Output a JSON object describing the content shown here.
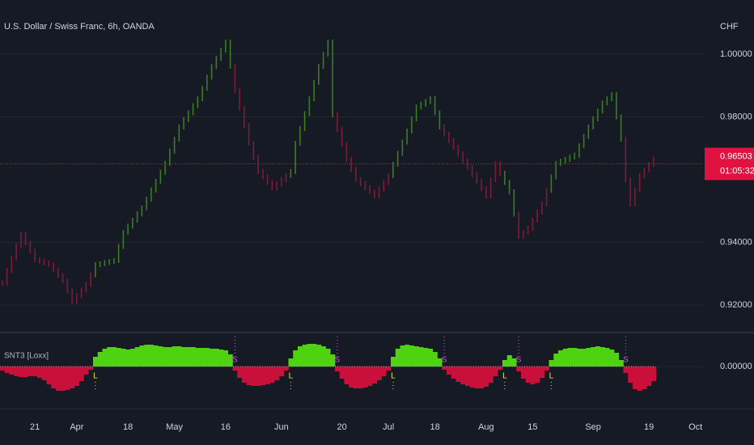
{
  "chart_data": [
    {
      "type": "bar",
      "title": "U.S. Dollar / Swiss Franc, 6h, OANDA",
      "currency": "CHF",
      "categories": [
        null,
        null,
        null,
        null,
        null,
        null,
        null,
        "21",
        null,
        null,
        null,
        null,
        null,
        null,
        null,
        null,
        "Apr",
        null,
        null,
        null,
        null,
        null,
        null,
        null,
        null,
        null,
        null,
        "18",
        null,
        null,
        null,
        null,
        null,
        null,
        null,
        null,
        null,
        "May",
        null,
        null,
        null,
        null,
        null,
        null,
        null,
        null,
        null,
        null,
        "16",
        null,
        null,
        null,
        null,
        null,
        null,
        null,
        null,
        null,
        null,
        null,
        "Jun",
        null,
        null,
        null,
        null,
        null,
        null,
        null,
        null,
        null,
        null,
        null,
        null,
        "20",
        null,
        null,
        null,
        null,
        null,
        null,
        null,
        null,
        null,
        "Jul",
        null,
        null,
        null,
        null,
        null,
        null,
        null,
        null,
        null,
        "18",
        null,
        null,
        null,
        null,
        null,
        null,
        null,
        null,
        null,
        null,
        "Aug",
        null,
        null,
        null,
        null,
        null,
        null,
        null,
        null,
        null,
        "15",
        null,
        null,
        null,
        null,
        null,
        null,
        null,
        null,
        null,
        null,
        null,
        null,
        "Sep",
        null,
        null,
        null,
        null,
        null,
        null,
        null,
        null,
        null,
        null,
        null,
        "19",
        null,
        null,
        null,
        null,
        null,
        null,
        null,
        null,
        null,
        "Oct"
      ],
      "series": [
        {
          "name": "USDCHF",
          "up_color": "#3b7d1f",
          "down_color": "#7d1c36",
          "values": [
            0.927,
            0.931,
            0.935,
            0.939,
            0.9425,
            0.9398,
            0.9372,
            0.9345,
            0.934,
            0.9334,
            0.9329,
            0.9312,
            0.9294,
            0.9277,
            0.9245,
            0.9212,
            0.923,
            0.9248,
            0.9265,
            0.9297,
            0.9329,
            0.9332,
            0.9336,
            0.9339,
            0.9342,
            0.9387,
            0.9432,
            0.9452,
            0.9471,
            0.9491,
            0.951,
            0.9538,
            0.9567,
            0.9595,
            0.9624,
            0.9652,
            0.9691,
            0.9729,
            0.9768,
            0.9791,
            0.9813,
            0.9836,
            0.9858,
            0.9892,
            0.9927,
            0.9961,
            0.9987,
            1.0013,
            1.0039,
            0.9962,
            0.9884,
            0.9828,
            0.9772,
            0.9716,
            0.9671,
            0.9626,
            0.9609,
            0.9591,
            0.9574,
            0.9587,
            0.96,
            0.9613,
            0.9626,
            0.9716,
            0.9763,
            0.9811,
            0.9858,
            0.991,
            0.9961,
            1.0,
            1.0039,
            0.9807,
            0.976,
            0.9712,
            0.9665,
            0.9633,
            0.96,
            0.9587,
            0.9574,
            0.9561,
            0.9548,
            0.957,
            0.9591,
            0.9613,
            0.9649,
            0.9684,
            0.972,
            0.9755,
            0.9794,
            0.9832,
            0.9841,
            0.9849,
            0.9858,
            0.9813,
            0.9768,
            0.9746,
            0.9725,
            0.9703,
            0.9682,
            0.966,
            0.9639,
            0.9616,
            0.9594,
            0.9571,
            0.9548,
            0.96,
            0.9651,
            0.9621,
            0.9591,
            0.9561,
            0.949,
            0.9419,
            0.9432,
            0.9445,
            0.9471,
            0.9497,
            0.9523,
            0.9566,
            0.9609,
            0.9652,
            0.9659,
            0.9665,
            0.9672,
            0.9678,
            0.9708,
            0.9738,
            0.9768,
            0.9794,
            0.9819,
            0.9845,
            0.9858,
            0.9871,
            0.98,
            0.9729,
            0.96,
            0.9523,
            0.9568,
            0.9613,
            0.963,
            0.9648,
            0.9665,
            null,
            null,
            null,
            null,
            null,
            null,
            null,
            null,
            null
          ]
        }
      ],
      "ylim": [
        0.9115,
        1.0173
      ],
      "yticks": [
        {
          "value": 1.0,
          "label": "1.00000"
        },
        {
          "value": 0.98,
          "label": "0.98000"
        },
        {
          "value": 0.94,
          "label": "0.94000"
        },
        {
          "value": 0.92,
          "label": "0.92000"
        }
      ],
      "grid": true,
      "last_price": 0.96503,
      "countdown": "01:05:32",
      "last_price_color": "#e0123f"
    },
    {
      "type": "area",
      "title": "SNT3 [Loxx]",
      "series": [
        {
          "name": "SNT3",
          "up_color": "#4fd20f",
          "down_color": "#c8103a",
          "values": [
            -0.005,
            -0.008,
            -0.01,
            -0.012,
            -0.013,
            -0.013,
            -0.012,
            -0.012,
            -0.014,
            -0.017,
            -0.022,
            -0.027,
            -0.03,
            -0.03,
            -0.029,
            -0.027,
            -0.024,
            -0.018,
            -0.01,
            -0.004,
            0.012,
            0.018,
            0.022,
            0.024,
            0.024,
            0.023,
            0.022,
            0.021,
            0.022,
            0.024,
            0.026,
            0.027,
            0.027,
            0.026,
            0.025,
            0.024,
            0.024,
            0.025,
            0.025,
            0.024,
            0.024,
            0.024,
            0.023,
            0.023,
            0.023,
            0.022,
            0.022,
            0.021,
            0.02,
            0.015,
            -0.005,
            -0.014,
            -0.02,
            -0.023,
            -0.024,
            -0.024,
            -0.023,
            -0.022,
            -0.02,
            -0.017,
            -0.012,
            -0.005,
            0.01,
            0.02,
            0.025,
            0.027,
            0.028,
            0.028,
            0.027,
            0.025,
            0.022,
            0.015,
            -0.006,
            -0.015,
            -0.022,
            -0.026,
            -0.027,
            -0.027,
            -0.026,
            -0.024,
            -0.021,
            -0.017,
            -0.012,
            -0.005,
            0.012,
            0.022,
            0.026,
            0.027,
            0.026,
            0.025,
            0.024,
            0.023,
            0.022,
            0.018,
            0.01,
            -0.004,
            -0.01,
            -0.015,
            -0.019,
            -0.022,
            -0.024,
            -0.026,
            -0.027,
            -0.027,
            -0.025,
            -0.02,
            -0.012,
            -0.004,
            0.008,
            0.014,
            0.01,
            -0.006,
            -0.015,
            -0.02,
            -0.022,
            -0.02,
            -0.014,
            -0.005,
            0.008,
            0.016,
            0.02,
            0.022,
            0.023,
            0.023,
            0.022,
            0.022,
            0.023,
            0.024,
            0.025,
            0.024,
            0.023,
            0.021,
            0.017,
            0.008,
            -0.008,
            -0.02,
            -0.028,
            -0.03,
            -0.028,
            -0.024,
            -0.018,
            null,
            null,
            null,
            null,
            null,
            null,
            null,
            null,
            null
          ]
        }
      ],
      "ylim": [
        -0.042,
        0.04
      ],
      "yticks": [
        {
          "value": 0,
          "label": "0.00000"
        }
      ],
      "signal_labels": {
        "sell": "S",
        "buy": "L"
      },
      "sell_color": "#d84ff0",
      "buy_color": "#f5e12a"
    }
  ]
}
